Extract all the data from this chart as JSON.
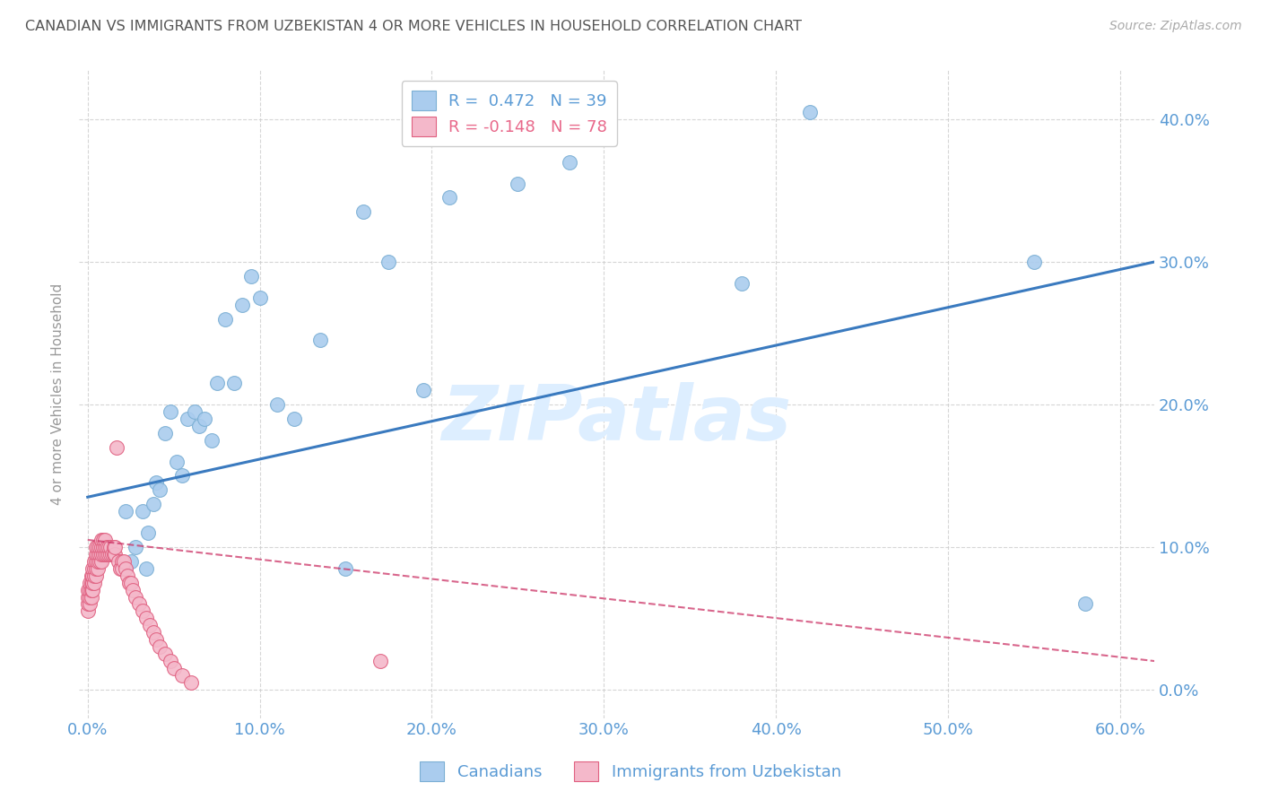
{
  "title": "CANADIAN VS IMMIGRANTS FROM UZBEKISTAN 4 OR MORE VEHICLES IN HOUSEHOLD CORRELATION CHART",
  "source": "Source: ZipAtlas.com",
  "ylabel": "4 or more Vehicles in Household",
  "watermark": "ZIPatlas",
  "legend_entries": [
    {
      "label": "R =  0.472   N = 39",
      "color": "#5b9bd5"
    },
    {
      "label": "R = -0.148   N = 78",
      "color": "#e8688a"
    }
  ],
  "legend_label_canadians": "Canadians",
  "legend_label_immigrants": "Immigrants from Uzbekistan",
  "canadians": {
    "x": [
      0.022,
      0.022,
      0.025,
      0.028,
      0.032,
      0.034,
      0.035,
      0.038,
      0.04,
      0.042,
      0.045,
      0.048,
      0.052,
      0.055,
      0.058,
      0.062,
      0.065,
      0.068,
      0.072,
      0.075,
      0.08,
      0.085,
      0.09,
      0.095,
      0.1,
      0.11,
      0.12,
      0.135,
      0.15,
      0.16,
      0.175,
      0.195,
      0.21,
      0.25,
      0.28,
      0.38,
      0.42,
      0.55,
      0.58
    ],
    "y": [
      0.125,
      0.085,
      0.09,
      0.1,
      0.125,
      0.085,
      0.11,
      0.13,
      0.145,
      0.14,
      0.18,
      0.195,
      0.16,
      0.15,
      0.19,
      0.195,
      0.185,
      0.19,
      0.175,
      0.215,
      0.26,
      0.215,
      0.27,
      0.29,
      0.275,
      0.2,
      0.19,
      0.245,
      0.085,
      0.335,
      0.3,
      0.21,
      0.345,
      0.355,
      0.37,
      0.285,
      0.405,
      0.3,
      0.06
    ],
    "color": "#aaccee",
    "edgecolor": "#7bafd4",
    "line_color": "#3a7abf",
    "line_start_y": 0.135,
    "line_end_y": 0.3
  },
  "immigrants": {
    "x": [
      0.0,
      0.0,
      0.0,
      0.0,
      0.001,
      0.001,
      0.001,
      0.001,
      0.002,
      0.002,
      0.002,
      0.002,
      0.003,
      0.003,
      0.003,
      0.003,
      0.004,
      0.004,
      0.004,
      0.004,
      0.005,
      0.005,
      0.005,
      0.005,
      0.005,
      0.006,
      0.006,
      0.006,
      0.006,
      0.007,
      0.007,
      0.007,
      0.008,
      0.008,
      0.008,
      0.008,
      0.009,
      0.009,
      0.009,
      0.01,
      0.01,
      0.01,
      0.011,
      0.011,
      0.012,
      0.012,
      0.013,
      0.013,
      0.014,
      0.015,
      0.015,
      0.016,
      0.016,
      0.017,
      0.018,
      0.019,
      0.02,
      0.02,
      0.021,
      0.022,
      0.023,
      0.024,
      0.025,
      0.026,
      0.028,
      0.03,
      0.032,
      0.034,
      0.036,
      0.038,
      0.04,
      0.042,
      0.045,
      0.048,
      0.05,
      0.055,
      0.06,
      0.17
    ],
    "y": [
      0.055,
      0.06,
      0.065,
      0.07,
      0.06,
      0.065,
      0.07,
      0.075,
      0.065,
      0.07,
      0.075,
      0.08,
      0.07,
      0.075,
      0.08,
      0.085,
      0.075,
      0.08,
      0.085,
      0.09,
      0.08,
      0.085,
      0.09,
      0.095,
      0.1,
      0.085,
      0.09,
      0.095,
      0.1,
      0.09,
      0.095,
      0.1,
      0.09,
      0.095,
      0.1,
      0.105,
      0.095,
      0.1,
      0.105,
      0.095,
      0.1,
      0.105,
      0.095,
      0.1,
      0.095,
      0.1,
      0.095,
      0.1,
      0.095,
      0.095,
      0.1,
      0.095,
      0.1,
      0.17,
      0.09,
      0.085,
      0.09,
      0.085,
      0.09,
      0.085,
      0.08,
      0.075,
      0.075,
      0.07,
      0.065,
      0.06,
      0.055,
      0.05,
      0.045,
      0.04,
      0.035,
      0.03,
      0.025,
      0.02,
      0.015,
      0.01,
      0.005,
      0.02
    ],
    "color": "#f4b8ca",
    "edgecolor": "#e06080",
    "line_color": "#cc3366",
    "line_start_y": 0.105,
    "line_end_y": 0.02
  },
  "xlim": [
    -0.005,
    0.62
  ],
  "ylim": [
    -0.02,
    0.435
  ],
  "xticks": [
    0.0,
    0.1,
    0.2,
    0.3,
    0.4,
    0.5,
    0.6
  ],
  "yticks": [
    0.0,
    0.1,
    0.2,
    0.3,
    0.4
  ],
  "background_color": "#ffffff",
  "grid_color": "#cccccc",
  "title_color": "#555555",
  "axis_color": "#5b9bd5",
  "watermark_color": "#ddeeff"
}
